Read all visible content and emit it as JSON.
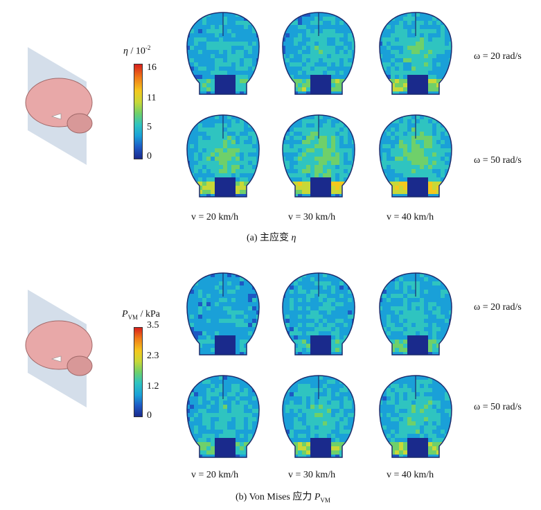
{
  "panel_a": {
    "colorbar": {
      "title_symbol": "η",
      "title_unit": " / 10",
      "title_exp": "-2",
      "ticks": [
        "16",
        "11",
        "5",
        "0"
      ]
    },
    "row_labels": [
      "ω = 20 rad/s",
      "ω = 50 rad/s"
    ],
    "col_labels": [
      "v = 20 km/h",
      "v = 30 km/h",
      "v = 40 km/h"
    ],
    "caption_prefix": "(a)  主应变 ",
    "caption_symbol": "η"
  },
  "panel_b": {
    "colorbar": {
      "title_symbol": "P",
      "title_sub": "VM",
      "title_unit": " / kPa",
      "ticks": [
        "3.5",
        "2.3",
        "1.2",
        "0"
      ]
    },
    "row_labels": [
      "ω = 20 rad/s",
      "ω = 50 rad/s"
    ],
    "col_labels": [
      "v = 20 km/h",
      "v = 30 km/h",
      "v = 40 km/h"
    ],
    "caption_prefix": "(b)  Von Mises 应力 ",
    "caption_symbol": "P",
    "caption_sub": "VM"
  },
  "colors": {
    "colormap": [
      "#1a2a8c",
      "#1d58c4",
      "#1aa0d8",
      "#2fc4c0",
      "#6fd06a",
      "#c8d838",
      "#f4c81e",
      "#f07a18",
      "#d8201c"
    ],
    "brain_model": "#e8a8a8",
    "plane": "#b8c8dc"
  }
}
